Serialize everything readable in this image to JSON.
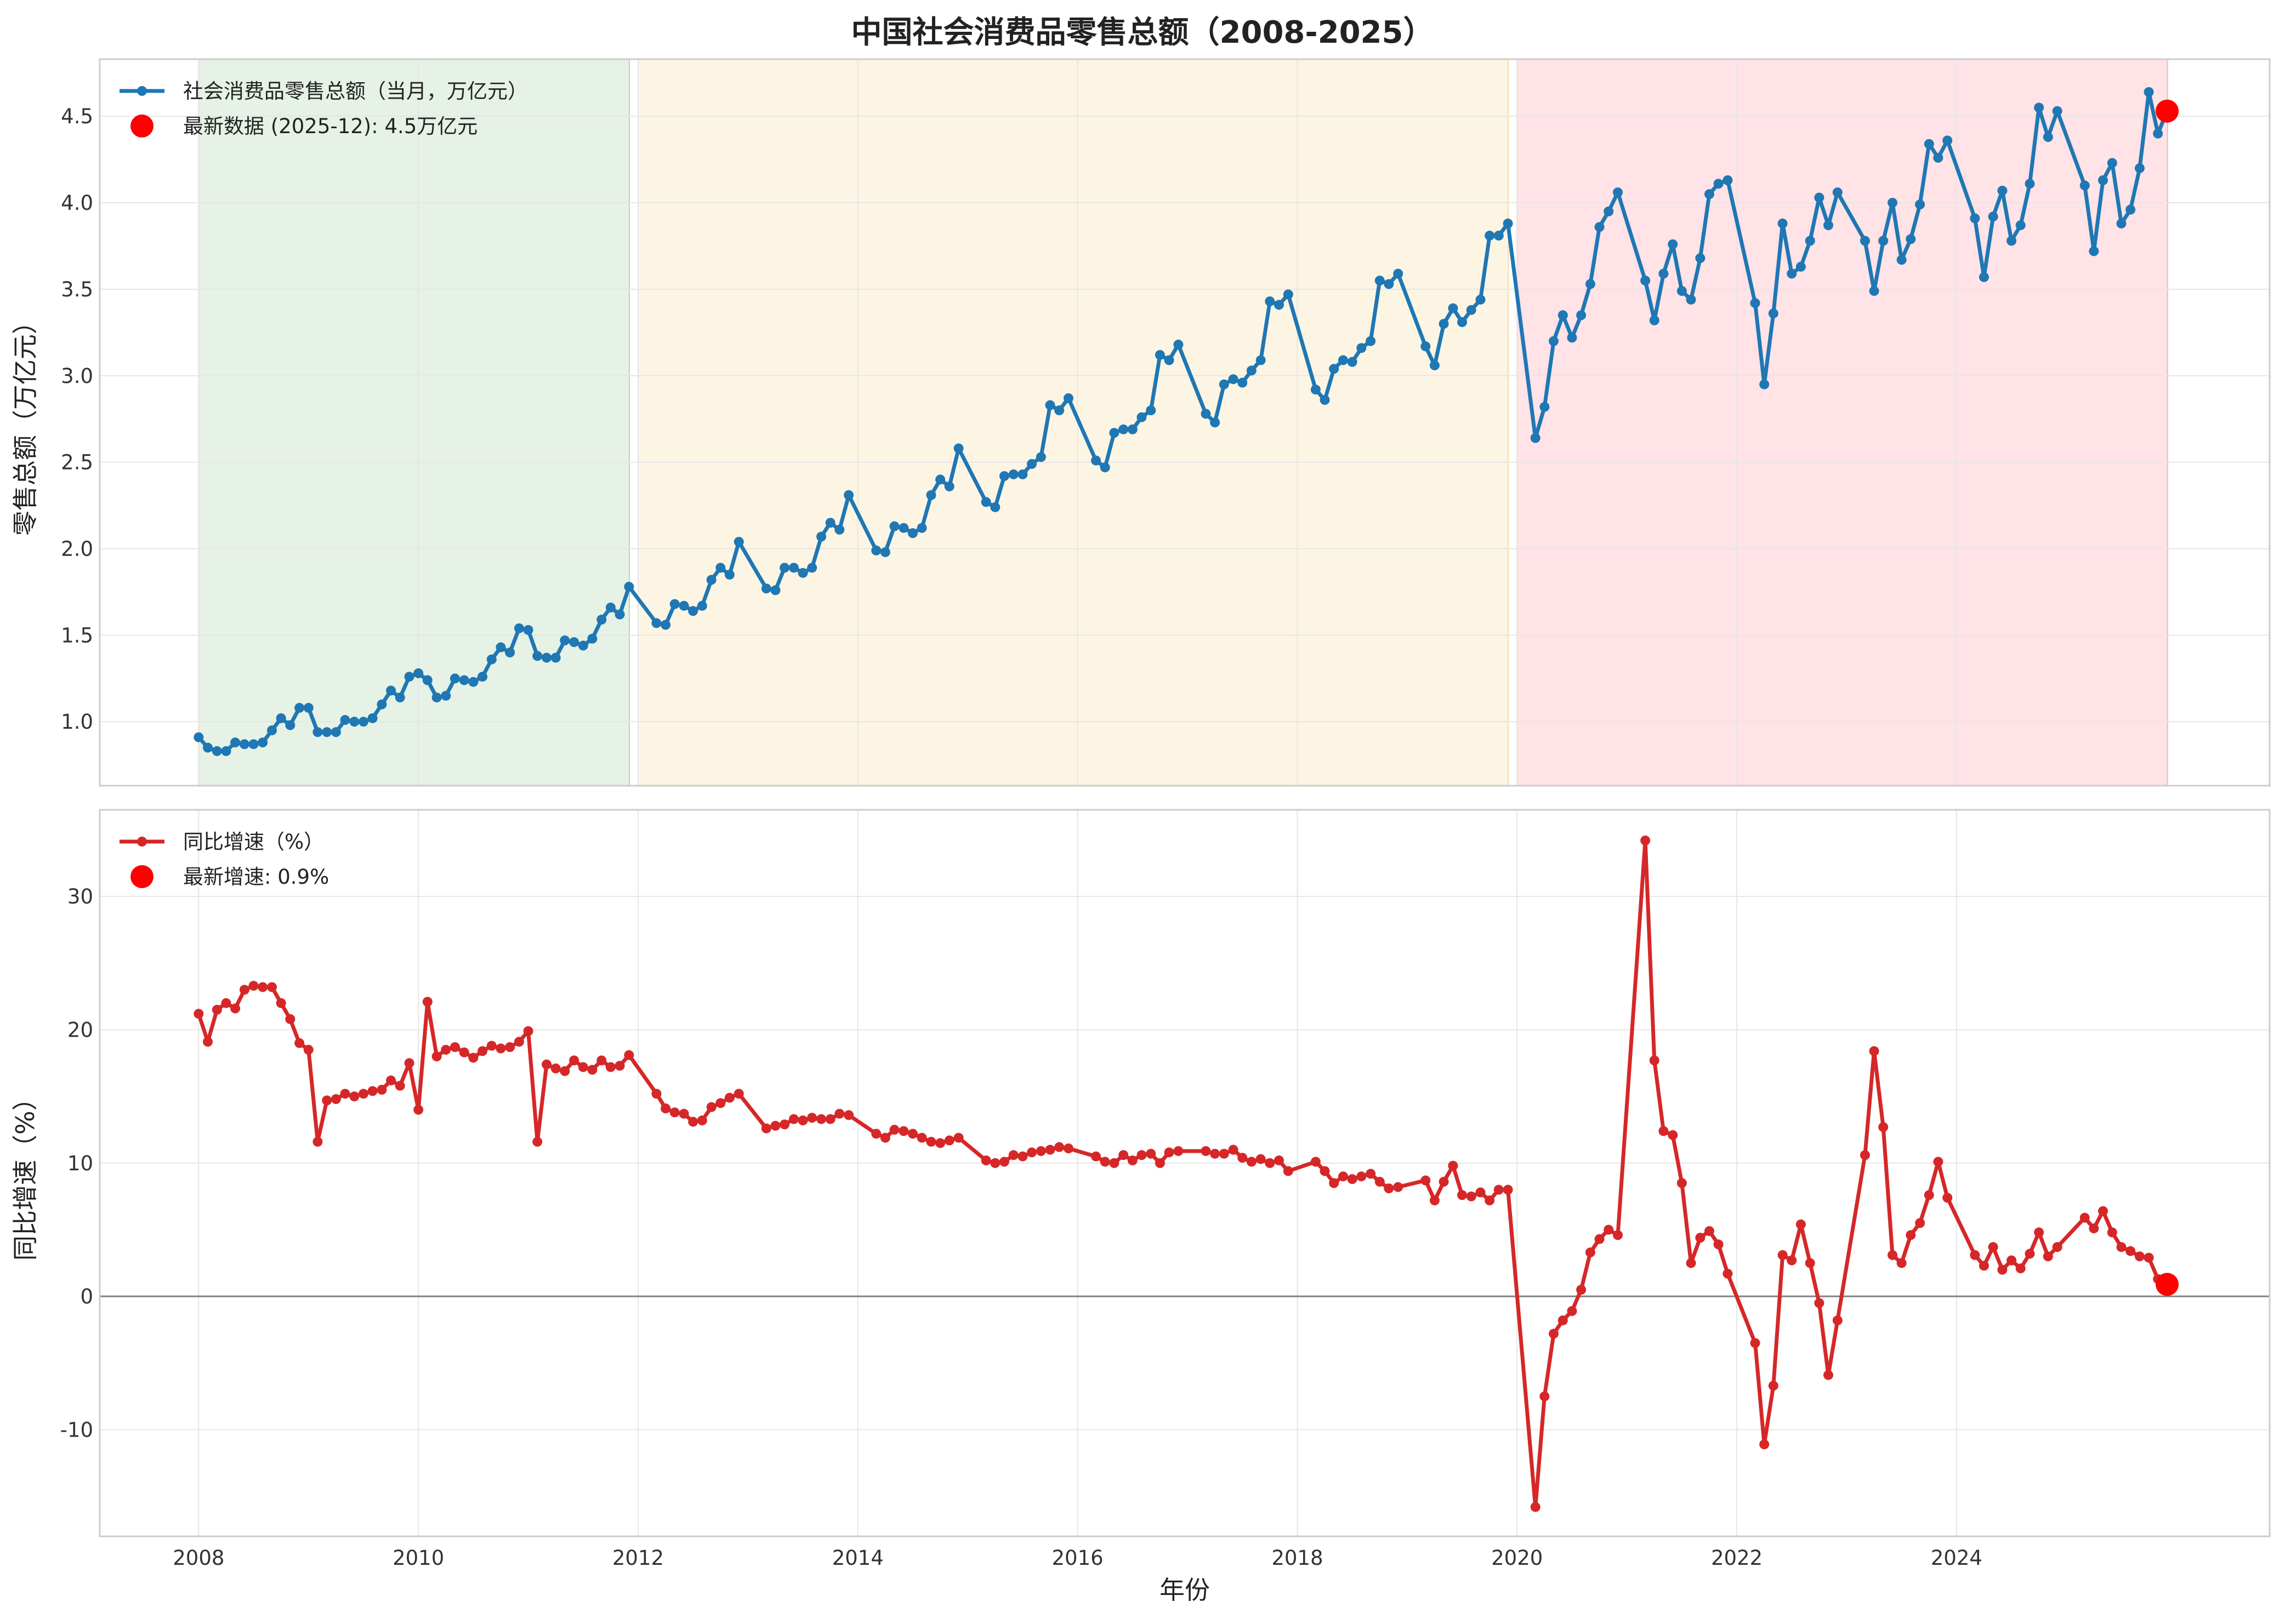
{
  "title": "中国社会消费品零售总额（2008-2025）",
  "colors": {
    "series_top": "#1f77b4",
    "series_bottom": "#d62728",
    "latest": "#ff0000",
    "period_1": "#e5f2e5",
    "period_2": "#fdf5e4",
    "period_3": "#ffe3e6",
    "zero_line": "#808080"
  },
  "chart_data": [
    {
      "type": "line",
      "ylabel": "零售总额（万亿元）",
      "ylim": [
        0.63,
        4.83
      ],
      "yticks": [
        1.0,
        1.5,
        2.0,
        2.5,
        3.0,
        3.5,
        4.0,
        4.5
      ],
      "ytick_labels": [
        "1.0",
        "1.5",
        "2.0",
        "2.5",
        "3.0",
        "3.5",
        "4.0",
        "4.5"
      ],
      "xlim": [
        2007.1,
        2026.85
      ],
      "grid": true,
      "legend_position": "top-left",
      "shaded_periods": [
        {
          "start": 2008.0,
          "end": 2011.92
        },
        {
          "start": 2012.0,
          "end": 2019.92
        },
        {
          "start": 2020.0,
          "end": 2025.92
        }
      ],
      "series": [
        {
          "name": "社会消费品零售总额（当月，万亿元）",
          "x": [
            2008.0,
            2008.083,
            2008.167,
            2008.25,
            2008.333,
            2008.417,
            2008.5,
            2008.583,
            2008.667,
            2008.75,
            2008.833,
            2008.917,
            2009.0,
            2009.083,
            2009.167,
            2009.25,
            2009.333,
            2009.417,
            2009.5,
            2009.583,
            2009.667,
            2009.75,
            2009.833,
            2009.917,
            2010.0,
            2010.083,
            2010.167,
            2010.25,
            2010.333,
            2010.417,
            2010.5,
            2010.583,
            2010.667,
            2010.75,
            2010.833,
            2010.917,
            2011.0,
            2011.083,
            2011.167,
            2011.25,
            2011.333,
            2011.417,
            2011.5,
            2011.583,
            2011.667,
            2011.75,
            2011.833,
            2011.917,
            2012.167,
            2012.25,
            2012.333,
            2012.417,
            2012.5,
            2012.583,
            2012.667,
            2012.75,
            2012.833,
            2012.917,
            2013.167,
            2013.25,
            2013.333,
            2013.417,
            2013.5,
            2013.583,
            2013.667,
            2013.75,
            2013.833,
            2013.917,
            2014.167,
            2014.25,
            2014.333,
            2014.417,
            2014.5,
            2014.583,
            2014.667,
            2014.75,
            2014.833,
            2014.917,
            2015.167,
            2015.25,
            2015.333,
            2015.417,
            2015.5,
            2015.583,
            2015.667,
            2015.75,
            2015.833,
            2015.917,
            2016.167,
            2016.25,
            2016.333,
            2016.417,
            2016.5,
            2016.583,
            2016.667,
            2016.75,
            2016.833,
            2016.917,
            2017.167,
            2017.25,
            2017.333,
            2017.417,
            2017.5,
            2017.583,
            2017.667,
            2017.75,
            2017.833,
            2017.917,
            2018.167,
            2018.25,
            2018.333,
            2018.417,
            2018.5,
            2018.583,
            2018.667,
            2018.75,
            2018.833,
            2018.917,
            2019.167,
            2019.25,
            2019.333,
            2019.417,
            2019.5,
            2019.583,
            2019.667,
            2019.75,
            2019.833,
            2019.917,
            2020.167,
            2020.25,
            2020.333,
            2020.417,
            2020.5,
            2020.583,
            2020.667,
            2020.75,
            2020.833,
            2020.917,
            2021.167,
            2021.25,
            2021.333,
            2021.417,
            2021.5,
            2021.583,
            2021.667,
            2021.75,
            2021.833,
            2021.917,
            2022.167,
            2022.25,
            2022.333,
            2022.417,
            2022.5,
            2022.583,
            2022.667,
            2022.75,
            2022.833,
            2022.917,
            2023.167,
            2023.25,
            2023.333,
            2023.417,
            2023.5,
            2023.583,
            2023.667,
            2023.75,
            2023.833,
            2023.917,
            2024.167,
            2024.25,
            2024.333,
            2024.417,
            2024.5,
            2024.583,
            2024.667,
            2024.75,
            2024.833,
            2024.917,
            2025.167,
            2025.25,
            2025.333,
            2025.417,
            2025.5,
            2025.583,
            2025.667,
            2025.75,
            2025.833,
            2025.917
          ],
          "y": [
            0.91,
            0.85,
            0.83,
            0.83,
            0.88,
            0.87,
            0.87,
            0.88,
            0.95,
            1.02,
            0.98,
            1.08,
            1.08,
            0.94,
            0.94,
            0.94,
            1.01,
            1.0,
            1.0,
            1.02,
            1.1,
            1.18,
            1.14,
            1.26,
            1.28,
            1.24,
            1.14,
            1.15,
            1.25,
            1.24,
            1.23,
            1.26,
            1.36,
            1.43,
            1.4,
            1.54,
            1.53,
            1.38,
            1.37,
            1.37,
            1.47,
            1.46,
            1.44,
            1.48,
            1.59,
            1.66,
            1.62,
            1.78,
            1.57,
            1.56,
            1.68,
            1.67,
            1.64,
            1.67,
            1.82,
            1.89,
            1.85,
            2.04,
            1.77,
            1.76,
            1.89,
            1.89,
            1.86,
            1.89,
            2.07,
            2.15,
            2.11,
            2.31,
            1.99,
            1.98,
            2.13,
            2.12,
            2.09,
            2.12,
            2.31,
            2.4,
            2.36,
            2.58,
            2.27,
            2.24,
            2.42,
            2.43,
            2.43,
            2.49,
            2.53,
            2.83,
            2.8,
            2.87,
            2.51,
            2.47,
            2.67,
            2.69,
            2.69,
            2.76,
            2.8,
            3.12,
            3.09,
            3.18,
            2.78,
            2.73,
            2.95,
            2.98,
            2.96,
            3.03,
            3.09,
            3.43,
            3.41,
            3.47,
            2.92,
            2.86,
            3.04,
            3.09,
            3.08,
            3.16,
            3.2,
            3.55,
            3.53,
            3.59,
            3.17,
            3.06,
            3.3,
            3.39,
            3.31,
            3.38,
            3.44,
            3.81,
            3.81,
            3.88,
            2.64,
            2.82,
            3.2,
            3.35,
            3.22,
            3.35,
            3.53,
            3.86,
            3.95,
            4.06,
            3.55,
            3.32,
            3.59,
            3.76,
            3.49,
            3.44,
            3.68,
            4.05,
            4.11,
            4.13,
            3.42,
            2.95,
            3.36,
            3.88,
            3.59,
            3.63,
            3.78,
            4.03,
            3.87,
            4.06,
            3.78,
            3.49,
            3.78,
            4.0,
            3.67,
            3.79,
            3.99,
            4.34,
            4.26,
            4.36,
            3.91,
            3.57,
            3.92,
            4.07,
            3.78,
            3.87,
            4.11,
            4.55,
            4.38,
            4.53,
            4.1,
            3.72,
            4.13,
            4.23,
            3.88,
            3.96,
            4.2,
            4.64,
            4.4,
            4.53
          ]
        }
      ],
      "latest": {
        "label": "最新数据 (2025-12): 4.5万亿元",
        "x": 2025.917,
        "y": 4.53
      }
    },
    {
      "type": "line",
      "xlabel": "年份",
      "ylabel": "同比增速（%）",
      "ylim": [
        -18,
        36.5
      ],
      "yticks": [
        -10,
        0,
        10,
        20,
        30
      ],
      "ytick_labels": [
        "-10",
        "0",
        "10",
        "20",
        "30"
      ],
      "xlim": [
        2007.1,
        2026.85
      ],
      "xticks": [
        2008,
        2010,
        2012,
        2014,
        2016,
        2018,
        2020,
        2022,
        2024
      ],
      "xtick_labels": [
        "2008",
        "2010",
        "2012",
        "2014",
        "2016",
        "2018",
        "2020",
        "2022",
        "2024"
      ],
      "grid": true,
      "legend_position": "top-left",
      "zero_line": 0,
      "series": [
        {
          "name": "同比增速（%）",
          "x": [
            2008.0,
            2008.083,
            2008.167,
            2008.25,
            2008.333,
            2008.417,
            2008.5,
            2008.583,
            2008.667,
            2008.75,
            2008.833,
            2008.917,
            2009.0,
            2009.083,
            2009.167,
            2009.25,
            2009.333,
            2009.417,
            2009.5,
            2009.583,
            2009.667,
            2009.75,
            2009.833,
            2009.917,
            2010.0,
            2010.083,
            2010.167,
            2010.25,
            2010.333,
            2010.417,
            2010.5,
            2010.583,
            2010.667,
            2010.75,
            2010.833,
            2010.917,
            2011.0,
            2011.083,
            2011.167,
            2011.25,
            2011.333,
            2011.417,
            2011.5,
            2011.583,
            2011.667,
            2011.75,
            2011.833,
            2011.917,
            2012.167,
            2012.25,
            2012.333,
            2012.417,
            2012.5,
            2012.583,
            2012.667,
            2012.75,
            2012.833,
            2012.917,
            2013.167,
            2013.25,
            2013.333,
            2013.417,
            2013.5,
            2013.583,
            2013.667,
            2013.75,
            2013.833,
            2013.917,
            2014.167,
            2014.25,
            2014.333,
            2014.417,
            2014.5,
            2014.583,
            2014.667,
            2014.75,
            2014.833,
            2014.917,
            2015.167,
            2015.25,
            2015.333,
            2015.417,
            2015.5,
            2015.583,
            2015.667,
            2015.75,
            2015.833,
            2015.917,
            2016.167,
            2016.25,
            2016.333,
            2016.417,
            2016.5,
            2016.583,
            2016.667,
            2016.75,
            2016.833,
            2016.917,
            2017.167,
            2017.25,
            2017.333,
            2017.417,
            2017.5,
            2017.583,
            2017.667,
            2017.75,
            2017.833,
            2017.917,
            2018.167,
            2018.25,
            2018.333,
            2018.417,
            2018.5,
            2018.583,
            2018.667,
            2018.75,
            2018.833,
            2018.917,
            2019.167,
            2019.25,
            2019.333,
            2019.417,
            2019.5,
            2019.583,
            2019.667,
            2019.75,
            2019.833,
            2019.917,
            2020.167,
            2020.25,
            2020.333,
            2020.417,
            2020.5,
            2020.583,
            2020.667,
            2020.75,
            2020.833,
            2020.917,
            2021.167,
            2021.25,
            2021.333,
            2021.417,
            2021.5,
            2021.583,
            2021.667,
            2021.75,
            2021.833,
            2021.917,
            2022.167,
            2022.25,
            2022.333,
            2022.417,
            2022.5,
            2022.583,
            2022.667,
            2022.75,
            2022.833,
            2022.917,
            2023.167,
            2023.25,
            2023.333,
            2023.417,
            2023.5,
            2023.583,
            2023.667,
            2023.75,
            2023.833,
            2023.917,
            2024.167,
            2024.25,
            2024.333,
            2024.417,
            2024.5,
            2024.583,
            2024.667,
            2024.75,
            2024.833,
            2024.917,
            2025.167,
            2025.25,
            2025.333,
            2025.417,
            2025.5,
            2025.583,
            2025.667,
            2025.75,
            2025.833,
            2025.917
          ],
          "y": [
            21.2,
            19.1,
            21.5,
            22.0,
            21.6,
            23.0,
            23.3,
            23.2,
            23.2,
            22.0,
            20.8,
            19.0,
            18.5,
            11.6,
            14.7,
            14.8,
            15.2,
            15.0,
            15.2,
            15.4,
            15.5,
            16.2,
            15.8,
            17.5,
            14.0,
            22.1,
            18.0,
            18.5,
            18.7,
            18.3,
            17.9,
            18.4,
            18.8,
            18.6,
            18.7,
            19.1,
            19.9,
            11.6,
            17.4,
            17.1,
            16.9,
            17.7,
            17.2,
            17.0,
            17.7,
            17.2,
            17.3,
            18.1,
            15.2,
            14.1,
            13.8,
            13.7,
            13.1,
            13.2,
            14.2,
            14.5,
            14.9,
            15.2,
            12.6,
            12.8,
            12.9,
            13.3,
            13.2,
            13.4,
            13.3,
            13.3,
            13.7,
            13.6,
            12.2,
            11.9,
            12.5,
            12.4,
            12.2,
            11.9,
            11.6,
            11.5,
            11.7,
            11.9,
            10.2,
            10.0,
            10.1,
            10.6,
            10.5,
            10.8,
            10.9,
            11.0,
            11.2,
            11.1,
            10.5,
            10.1,
            10.0,
            10.6,
            10.2,
            10.6,
            10.7,
            10.0,
            10.8,
            10.9,
            10.9,
            10.7,
            10.7,
            11.0,
            10.4,
            10.1,
            10.3,
            10.0,
            10.2,
            9.4,
            10.1,
            9.4,
            8.5,
            9.0,
            8.8,
            9.0,
            9.2,
            8.6,
            8.1,
            8.2,
            8.7,
            7.2,
            8.6,
            9.8,
            7.6,
            7.5,
            7.8,
            7.2,
            8.0,
            8.0,
            -15.8,
            -7.5,
            -2.8,
            -1.8,
            -1.1,
            0.5,
            3.3,
            4.3,
            5.0,
            4.6,
            34.2,
            17.7,
            12.4,
            12.1,
            8.5,
            2.5,
            4.4,
            4.9,
            3.9,
            1.7,
            -3.5,
            -11.1,
            -6.7,
            3.1,
            2.7,
            5.4,
            2.5,
            -0.5,
            -5.9,
            -1.8,
            10.6,
            18.4,
            12.7,
            3.1,
            2.5,
            4.6,
            5.5,
            7.6,
            10.1,
            7.4,
            3.1,
            2.3,
            3.7,
            2.0,
            2.7,
            2.1,
            3.2,
            4.8,
            3.0,
            3.7,
            5.9,
            5.1,
            6.4,
            4.8,
            3.7,
            3.4,
            3.0,
            2.9,
            1.3,
            0.9
          ]
        }
      ],
      "latest": {
        "label": "最新增速: 0.9%",
        "x": 2025.917,
        "y": 0.9
      }
    }
  ]
}
